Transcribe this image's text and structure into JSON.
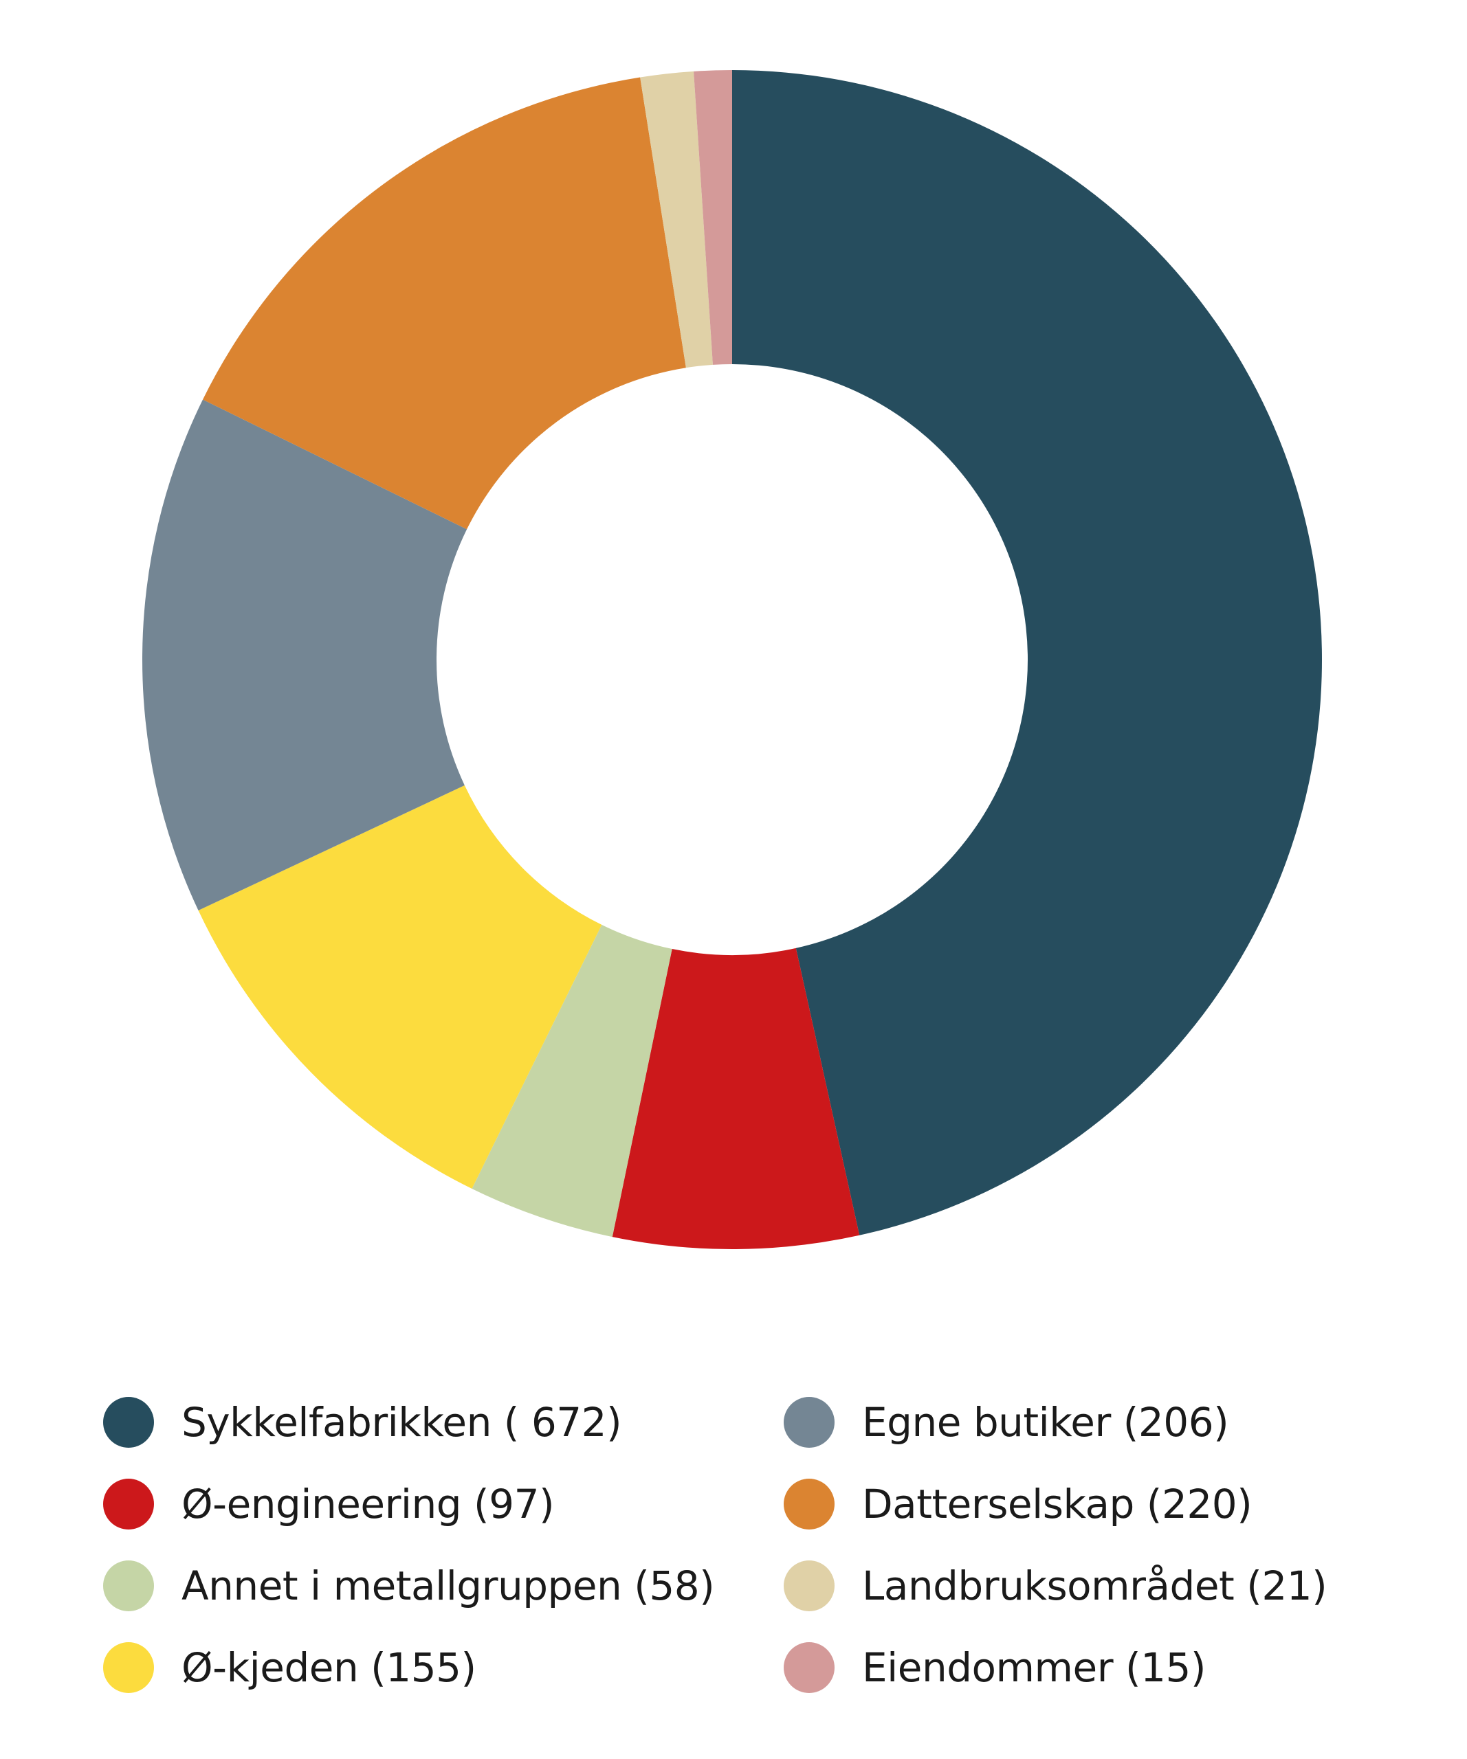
{
  "chart_data": {
    "type": "pie",
    "donut": true,
    "slices": [
      {
        "label": "Sykkelfabrikken",
        "value": 672,
        "legend_text": "Sykkelfabrikken ( 672)",
        "color": "#264d5e"
      },
      {
        "label": "Ø-engineering",
        "value": 97,
        "legend_text": "Ø-engineering (97)",
        "color": "#cc181b"
      },
      {
        "label": "Annet i metallgruppen",
        "value": 58,
        "legend_text": "Annet i metallgruppen (58)",
        "color": "#c5d5a6"
      },
      {
        "label": "Ø-kjeden",
        "value": 155,
        "legend_text": "Ø-kjeden (155)",
        "color": "#fcdc3e"
      },
      {
        "label": "Egne butiker",
        "value": 206,
        "legend_text": "Egne butiker (206)",
        "color": "#748694"
      },
      {
        "label": "Datterselskap",
        "value": 220,
        "legend_text": "Datterselskap (220)",
        "color": "#db8431"
      },
      {
        "label": "Landbruksområdet",
        "value": 21,
        "legend_text": "Landbruksområdet (21)",
        "color": "#e0d1a7"
      },
      {
        "label": "Eiendommer",
        "value": 15,
        "legend_text": "Eiendommer (15)",
        "color": "#d49a99"
      }
    ],
    "legend_order": [
      0,
      4,
      1,
      5,
      2,
      6,
      3,
      7
    ],
    "legend_placement": "bottom",
    "legend_columns": 2
  }
}
